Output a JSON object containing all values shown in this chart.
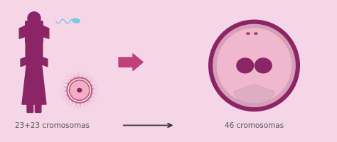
{
  "bg_color": "#f5d5e8",
  "figure_color": "#8b2565",
  "arrow_color": "#c0407a",
  "sperm_color": "#80c8e0",
  "egg_outer_color": "#c0587a",
  "egg_inner_color": "#f0b0c8",
  "egg_nucleus_color": "#9b2060",
  "big_cell_outer_color": "#8b2565",
  "big_cell_ring_color": "#c87898",
  "big_cell_inner_color": "#f0b8cc",
  "big_cell_nucleus_color": "#8b2565",
  "text_color": "#555555",
  "label_left": "23+23 cromosomas",
  "label_right": "46 cromosomas",
  "xlim": [
    0,
    10
  ],
  "ylim": [
    0,
    4.2
  ]
}
